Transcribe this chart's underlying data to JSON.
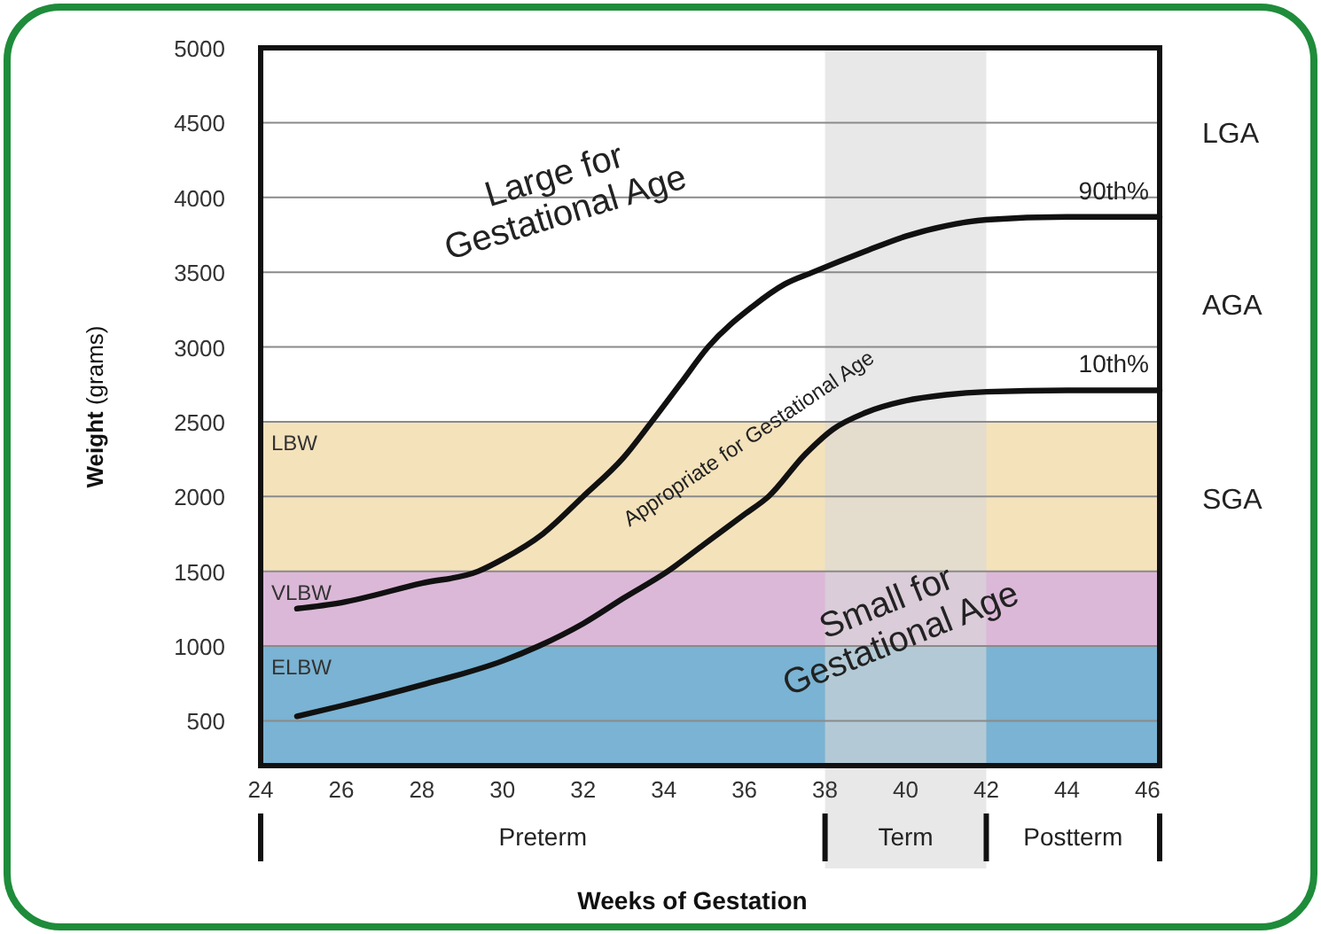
{
  "chart_data": {
    "type": "line",
    "xlabel": "Weeks of Gestation",
    "ylabel": "Weight (grams)",
    "xlim": [
      24,
      46.3
    ],
    "xticks": [
      24,
      26,
      28,
      30,
      32,
      34,
      36,
      38,
      40,
      42,
      44,
      46
    ],
    "ylim": [
      200,
      5000
    ],
    "yticks": [
      500,
      1000,
      1500,
      2000,
      2500,
      3000,
      3500,
      4000,
      4500,
      5000
    ],
    "grid": "y",
    "line_style": "solid",
    "series": [
      {
        "name": "90th%",
        "color": "#111111",
        "x": [
          24.9,
          26,
          28,
          29.4,
          30,
          31,
          32,
          33,
          33.7,
          34.4,
          35.1,
          36.2,
          37,
          37.7,
          39,
          40,
          41,
          42,
          44,
          46.3
        ],
        "values": [
          1250,
          1290,
          1420,
          1500,
          1580,
          1750,
          2000,
          2260,
          2500,
          2750,
          3000,
          3270,
          3420,
          3500,
          3640,
          3740,
          3810,
          3850,
          3870,
          3870
        ]
      },
      {
        "name": "10th%",
        "color": "#111111",
        "x": [
          24.9,
          26,
          28,
          30,
          30.9,
          32,
          33,
          34.1,
          35,
          36,
          36.6,
          37.5,
          38.2,
          39,
          40,
          41,
          42,
          44,
          46.3
        ],
        "values": [
          530,
          600,
          740,
          900,
          1000,
          1150,
          1320,
          1500,
          1680,
          1880,
          2000,
          2280,
          2450,
          2560,
          2640,
          2680,
          2700,
          2710,
          2710
        ]
      }
    ],
    "bands": [
      {
        "axis": "y",
        "from": 200,
        "to": 1000,
        "label": "ELBW",
        "color": "#7ab3d3"
      },
      {
        "axis": "y",
        "from": 1000,
        "to": 1500,
        "label": "VLBW",
        "color": "#dcb8d8"
      },
      {
        "axis": "y",
        "from": 1500,
        "to": 2500,
        "label": "LBW",
        "color": "#f4e2bb"
      },
      {
        "axis": "x",
        "from": 38,
        "to": 42,
        "label": "Term",
        "color": "#d9d9d9"
      }
    ],
    "annotations": [
      "Large for\nGestational Age",
      "Appropriate for Gestational Age",
      "Small for\nGestational Age",
      "LGA",
      "AGA",
      "SGA",
      "Preterm",
      "Postterm"
    ]
  }
}
